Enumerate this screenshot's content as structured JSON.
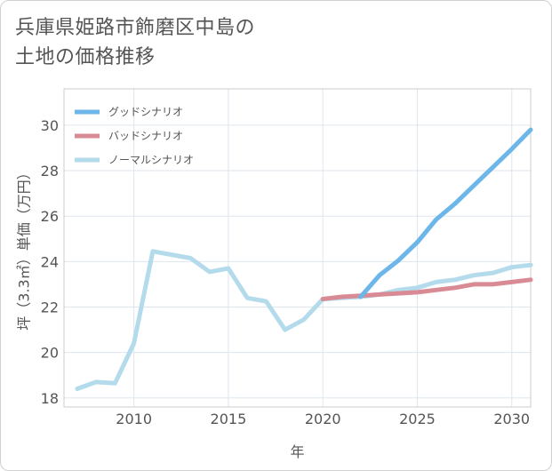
{
  "title": {
    "line1": "兵庫県姫路市飾磨区中島の",
    "line2": "土地の価格推移"
  },
  "chart_data": {
    "type": "line",
    "xlabel": "年",
    "ylabel": "坪（3.3㎡）単価（万円）",
    "xlim": [
      2006.3,
      2031
    ],
    "ylim": [
      17.6,
      31.6
    ],
    "xticks": [
      2010,
      2015,
      2020,
      2025,
      2030
    ],
    "yticks": [
      18,
      20,
      22,
      24,
      26,
      28,
      30
    ],
    "grid": true,
    "legend_position": "top-left",
    "series": [
      {
        "name": "グッドシナリオ",
        "color": "#6cb6ea",
        "x": [
          2022,
          2023,
          2024,
          2025,
          2026,
          2027,
          2028,
          2029,
          2030,
          2031
        ],
        "values": [
          22.45,
          23.4,
          24.05,
          24.85,
          25.85,
          26.55,
          27.35,
          28.15,
          28.95,
          29.8
        ]
      },
      {
        "name": "バッドシナリオ",
        "color": "#d98b95",
        "x": [
          2020,
          2021,
          2022,
          2023,
          2024,
          2025,
          2026,
          2027,
          2028,
          2029,
          2030,
          2031
        ],
        "values": [
          22.35,
          22.45,
          22.5,
          22.55,
          22.6,
          22.65,
          22.75,
          22.85,
          23.0,
          23.0,
          23.1,
          23.2
        ]
      },
      {
        "name": "ノーマルシナリオ",
        "color": "#b4dbeb",
        "x": [
          2007,
          2008,
          2009,
          2010,
          2011,
          2012,
          2013,
          2014,
          2015,
          2016,
          2017,
          2018,
          2019,
          2020,
          2021,
          2022,
          2023,
          2024,
          2025,
          2026,
          2027,
          2028,
          2029,
          2030,
          2031
        ],
        "values": [
          18.4,
          18.7,
          18.65,
          20.4,
          24.45,
          24.3,
          24.15,
          23.55,
          23.7,
          22.4,
          22.25,
          21.0,
          21.45,
          22.35,
          22.4,
          22.45,
          22.55,
          22.75,
          22.85,
          23.1,
          23.2,
          23.4,
          23.5,
          23.75,
          23.85
        ]
      }
    ]
  }
}
